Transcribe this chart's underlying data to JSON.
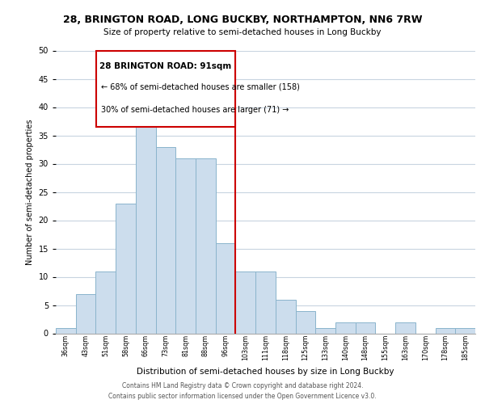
{
  "title_line1": "28, BRINGTON ROAD, LONG BUCKBY, NORTHAMPTON, NN6 7RW",
  "title_line2": "Size of property relative to semi-detached houses in Long Buckby",
  "xlabel": "Distribution of semi-detached houses by size in Long Buckby",
  "ylabel": "Number of semi-detached properties",
  "footer_line1": "Contains HM Land Registry data © Crown copyright and database right 2024.",
  "footer_line2": "Contains public sector information licensed under the Open Government Licence v3.0.",
  "bin_labels": [
    "36sqm",
    "43sqm",
    "51sqm",
    "58sqm",
    "66sqm",
    "73sqm",
    "81sqm",
    "88sqm",
    "96sqm",
    "103sqm",
    "111sqm",
    "118sqm",
    "125sqm",
    "133sqm",
    "140sqm",
    "148sqm",
    "155sqm",
    "163sqm",
    "170sqm",
    "178sqm",
    "185sqm"
  ],
  "bin_values": [
    1,
    7,
    11,
    23,
    41,
    33,
    31,
    31,
    16,
    11,
    11,
    6,
    4,
    1,
    2,
    2,
    0,
    2,
    0,
    1,
    1
  ],
  "bar_color": "#ccdded",
  "bar_edge_color": "#8ab4cc",
  "property_line_x": 8.5,
  "annotation_title": "28 BRINGTON ROAD: 91sqm",
  "annotation_line2": "← 68% of semi-detached houses are smaller (158)",
  "annotation_line3": "30% of semi-detached houses are larger (71) →",
  "annotation_box_color": "#ffffff",
  "annotation_box_edge": "#cc0000",
  "property_line_color": "#cc0000",
  "ylim": [
    0,
    50
  ],
  "yticks": [
    0,
    5,
    10,
    15,
    20,
    25,
    30,
    35,
    40,
    45,
    50
  ],
  "background_color": "#ffffff",
  "grid_color": "#c8d4e0"
}
